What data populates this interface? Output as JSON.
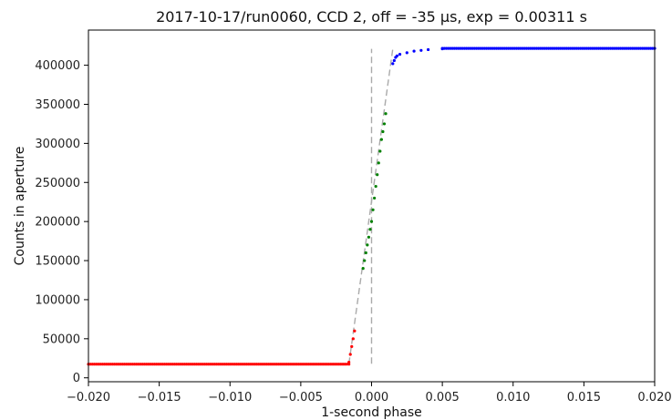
{
  "chart_data": {
    "type": "scatter",
    "title": "2017-10-17/run0060, CCD 2, off = -35 μs, exp = 0.00311 s",
    "xlabel": "1-second phase",
    "ylabel": "Counts in aperture",
    "xlim": [
      -0.02,
      0.02
    ],
    "ylim": [
      -5000,
      445000
    ],
    "grid": false,
    "legend": "none",
    "xticks": [
      -0.02,
      -0.015,
      -0.01,
      -0.005,
      0.0,
      0.005,
      0.01,
      0.015,
      0.02
    ],
    "xtick_labels": [
      "−0.020",
      "−0.015",
      "−0.010",
      "−0.005",
      "0.000",
      "0.005",
      "0.010",
      "0.015",
      "0.020"
    ],
    "yticks": [
      0,
      50000,
      100000,
      150000,
      200000,
      250000,
      300000,
      350000,
      400000
    ],
    "ytick_labels": [
      "0",
      "50000",
      "100000",
      "150000",
      "200000",
      "250000",
      "300000",
      "350000",
      "400000"
    ],
    "series": [
      {
        "color": "#ff0000",
        "style": "points",
        "segments": [
          {
            "x_start": -0.02,
            "x_end": -0.0016,
            "y": 17500,
            "dense": true
          },
          {
            "x": [
              -0.0016,
              -0.0015,
              -0.0014,
              -0.0013,
              -0.0012
            ],
            "y": [
              20000,
              30000,
              40000,
              50000,
              60000
            ]
          }
        ]
      },
      {
        "color": "#008000",
        "style": "points",
        "segments": [
          {
            "x": [
              -0.0006,
              -0.0005,
              -0.0004,
              -0.0003,
              -0.0002,
              -0.0001,
              0.0,
              0.0001,
              0.0002,
              0.0003,
              0.0004,
              0.0005,
              0.0006,
              0.0007,
              0.0008,
              0.0009,
              0.001
            ],
            "y": [
              140000,
              150000,
              160000,
              170000,
              180000,
              190000,
              200000,
              215000,
              230000,
              245000,
              260000,
              275000,
              290000,
              305000,
              315000,
              325000,
              338000
            ]
          }
        ]
      },
      {
        "color": "#0000ff",
        "style": "points",
        "segments": [
          {
            "x": [
              0.0015,
              0.0016,
              0.0017,
              0.0018,
              0.002,
              0.0025,
              0.003,
              0.0035,
              0.004,
              0.005
            ],
            "y": [
              402000,
              406000,
              410000,
              412000,
              414000,
              416000,
              418000,
              419000,
              420000,
              421000
            ]
          },
          {
            "x_start": 0.005,
            "x_end": 0.02,
            "y": 421500,
            "dense": true
          }
        ]
      }
    ],
    "reference_lines": [
      {
        "color": "#aaaaaa",
        "style": "dashed",
        "x": [
          0.0,
          0.0
        ],
        "y": [
          18000,
          421000
        ]
      },
      {
        "color": "#aaaaaa",
        "style": "dashed",
        "x": [
          -0.0016,
          0.0015
        ],
        "y": [
          18000,
          421000
        ]
      }
    ]
  }
}
